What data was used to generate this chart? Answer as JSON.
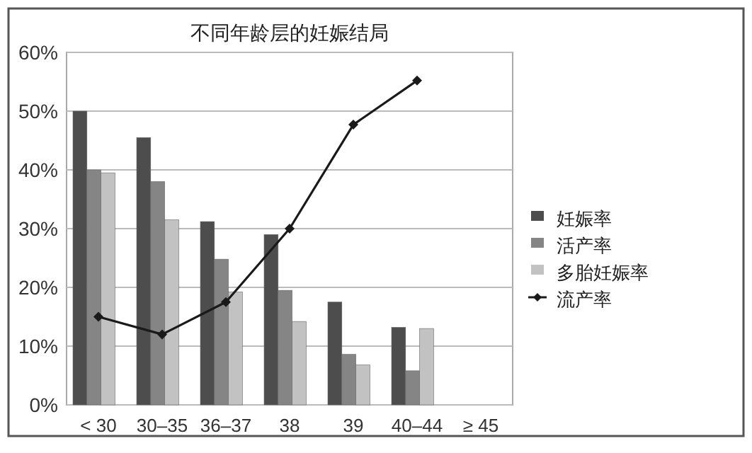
{
  "chart_data": {
    "type": "bar",
    "title": "不同年龄层的妊娠结局",
    "categories": [
      "< 30",
      "30–35",
      "36–37",
      "38",
      "39",
      "40–44",
      "≥ 45"
    ],
    "series": [
      {
        "name": "妊娠率",
        "color": "#4d4d4d",
        "values": [
          50,
          45.5,
          31.2,
          29,
          17.5,
          13.2,
          null
        ]
      },
      {
        "name": "活产率",
        "color": "#858585",
        "values": [
          40,
          38,
          24.8,
          19.5,
          8.6,
          5.8,
          null
        ]
      },
      {
        "name": "多胎妊娠率",
        "color": "#c2c2c2",
        "values": [
          39.5,
          31.5,
          19.2,
          14.2,
          6.8,
          13,
          null
        ]
      },
      {
        "name": "流产率",
        "type": "line",
        "color": "#1a1a1a",
        "marker": "diamond",
        "values": [
          15,
          12,
          17.5,
          30,
          47.7,
          55.2,
          null
        ]
      }
    ],
    "ylim": [
      0,
      60
    ],
    "yticks": [
      {
        "value": 0,
        "label": "0%"
      },
      {
        "value": 10,
        "label": "10%"
      },
      {
        "value": 20,
        "label": "20%"
      },
      {
        "value": 30,
        "label": "30%"
      },
      {
        "value": 40,
        "label": "40%"
      },
      {
        "value": 50,
        "label": "50%"
      },
      {
        "value": 60,
        "label": "60%"
      }
    ],
    "grid": "y",
    "legend": "right"
  }
}
